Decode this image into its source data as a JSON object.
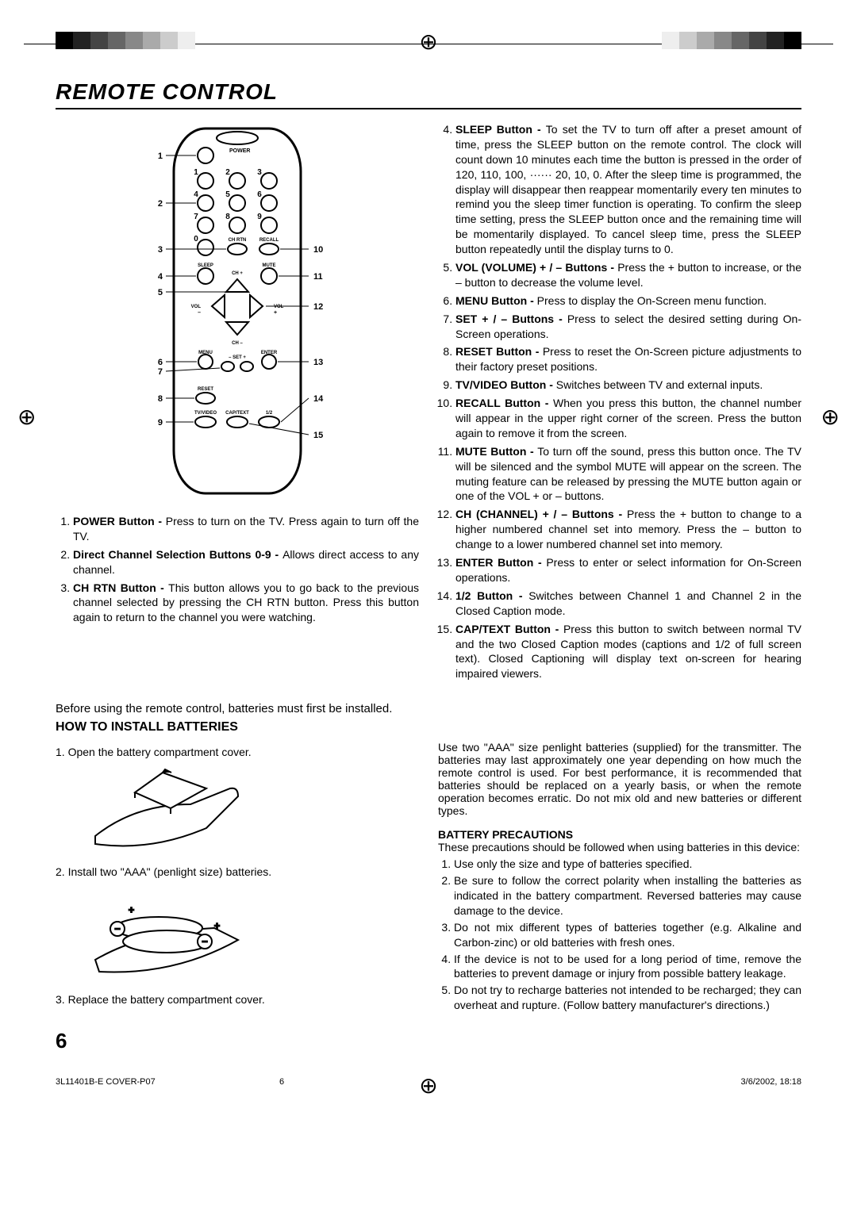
{
  "title": "REMOTE CONTROL",
  "remote": {
    "callouts_left": [
      "1",
      "2",
      "3",
      "4",
      "5",
      "6",
      "7",
      "8",
      "9"
    ],
    "callouts_right": [
      "10",
      "11",
      "12",
      "13",
      "14",
      "15"
    ],
    "labels": {
      "power": "POWER",
      "digits": [
        "1",
        "2",
        "3",
        "4",
        "5",
        "6",
        "7",
        "8",
        "9",
        "0"
      ],
      "chrtn": "CH RTN",
      "recall": "RECALL",
      "sleep": "SLEEP",
      "mute": "MUTE",
      "vol_minus": "VOL –",
      "vol_plus": "VOL +",
      "menu": "MENU",
      "enter": "ENTER",
      "set_minus": "– SET +",
      "ch_plus": "CH +",
      "ch_minus": "CH –",
      "reset": "RESET",
      "tvvideo": "TV/VIDEO",
      "captext": "CAP/TEXT",
      "half": "1/2"
    }
  },
  "buttons_left": [
    {
      "label": "POWER Button - ",
      "text": "Press to turn on the TV. Press again to turn off the TV."
    },
    {
      "label": "Direct Channel Selection Buttons 0-9 - ",
      "text": "Allows direct access to any channel."
    },
    {
      "label": "CH RTN Button - ",
      "text": "This button allows you to go back to the previous channel selected by pressing the CH RTN button. Press this button again to return to the channel you were watching."
    }
  ],
  "buttons_right": [
    {
      "label": "SLEEP Button - ",
      "text": "To set the TV to turn off after a preset amount of time, press the SLEEP button on the remote control. The clock will count down 10 minutes each time the button is pressed in the order of 120, 110, 100, ······ 20, 10, 0. After the sleep time is programmed, the display will disappear then reappear momentarily every ten minutes to remind you the sleep timer function is operating. To confirm the sleep time setting, press the SLEEP button once and the remaining time will be momentarily displayed. To cancel sleep time, press the SLEEP button repeatedly until the display turns to 0."
    },
    {
      "label": "VOL (VOLUME) + / – Buttons - ",
      "text": "Press the + button to increase, or the – button to decrease the volume level."
    },
    {
      "label": "MENU Button - ",
      "text": "Press to display the On-Screen menu function."
    },
    {
      "label": "SET + / – Buttons - ",
      "text": "Press to select the desired setting during On-Screen operations."
    },
    {
      "label": "RESET Button - ",
      "text": "Press to reset the On-Screen picture adjustments to their factory preset positions."
    },
    {
      "label": "TV/VIDEO Button - ",
      "text": "Switches between TV and external inputs."
    },
    {
      "label": "RECALL Button - ",
      "text": "When you press this button, the channel number will appear in the upper right corner of the screen. Press the button again to remove it from the screen."
    },
    {
      "label": "MUTE Button - ",
      "text": "To turn off the sound, press this button once. The TV will be silenced and the symbol MUTE will appear on the screen. The muting feature can be released by pressing the MUTE button again or one of the VOL + or – buttons."
    },
    {
      "label": "CH (CHANNEL) + / – Buttons - ",
      "text": "Press the + button to change to a higher numbered channel set into memory. Press the – button to change to a lower numbered channel set into memory."
    },
    {
      "label": "ENTER Button - ",
      "text": "Press to enter or select information for On-Screen operations."
    },
    {
      "label": "1/2 Button - ",
      "text": "Switches between Channel 1 and Channel 2 in the Closed Caption mode."
    },
    {
      "label": "CAP/TEXT Button - ",
      "text": "Press this button to switch  between normal TV and the two Closed Caption modes (captions and 1/2 of full screen text). Closed Captioning will display text on-screen for hearing impaired viewers."
    }
  ],
  "intro": "Before using the remote control, batteries must first be installed.",
  "how_to_title": "HOW TO INSTALL BATTERIES",
  "battery_steps": [
    "1. Open the battery compartment cover.",
    "2. Install two \"AAA\" (penlight size) batteries.",
    "3. Replace the battery compartment cover."
  ],
  "battery_info": "Use two \"AAA\" size penlight batteries (supplied) for the transmitter. The batteries may last approximately one year depending on how much the remote control is used. For best performance, it is recommended that batteries should be replaced on a yearly basis, or when the remote operation becomes erratic. Do not mix old and new batteries or different types.",
  "precautions_title": "BATTERY PRECAUTIONS",
  "precautions_intro": "These precautions should be followed when using batteries in this device:",
  "precautions": [
    "Use only the size and type of batteries specified.",
    "Be sure to follow the correct polarity when installing the batteries as indicated in the battery compartment. Reversed batteries may cause damage to the device.",
    "Do not mix different types of batteries together (e.g. Alkaline and Carbon-zinc) or old batteries with fresh ones.",
    "If the device is not to be used for a long period of time, remove the batteries to prevent damage or injury from possible battery leakage.",
    "Do not try to recharge batteries not intended to be recharged; they can overheat and rupture. (Follow battery manufacturer's directions.)"
  ],
  "page_number": "6",
  "footer_left": "3L11401B-E COVER-P07",
  "footer_center": "6",
  "footer_right": "3/6/2002, 18:18",
  "colors": {
    "bg": "#ffffff",
    "text": "#000000"
  }
}
